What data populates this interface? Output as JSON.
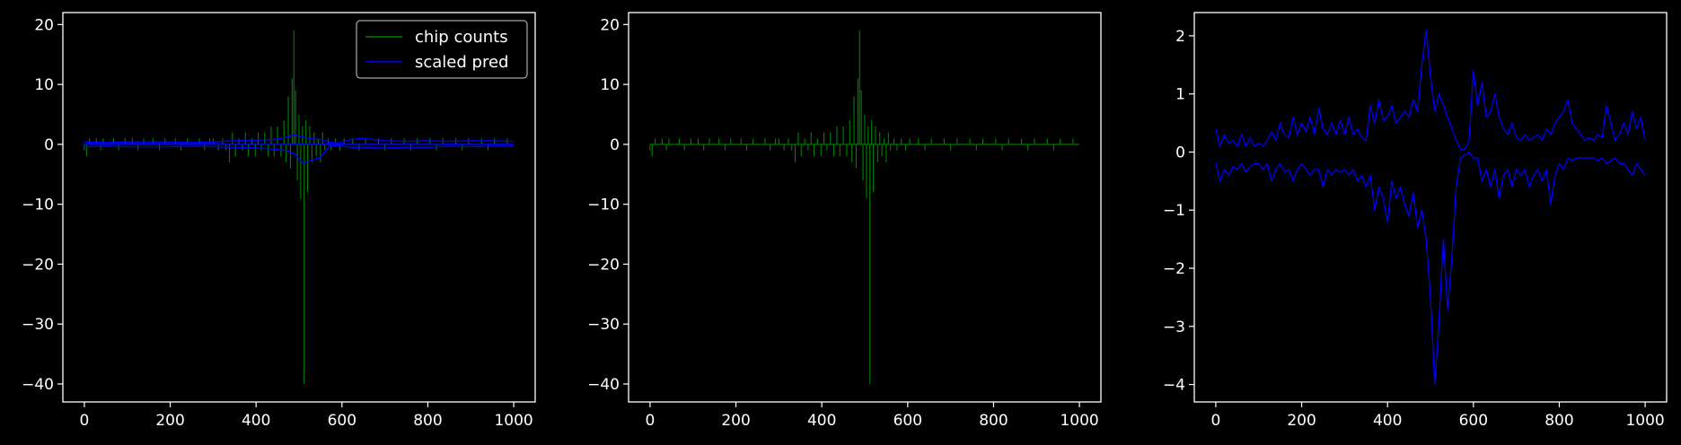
{
  "figure": {
    "background": "#000000",
    "axis_color": "#ffffff",
    "colors": {
      "counts": "#008000",
      "pred": "#0000ff"
    }
  },
  "chart_data": [
    {
      "type": "line",
      "title": "",
      "xlabel": "",
      "ylabel": "",
      "xlim": [
        -50,
        1050
      ],
      "ylim": [
        -43,
        22
      ],
      "xticks": [
        0,
        200,
        400,
        600,
        800,
        1000
      ],
      "xtick_labels": [
        "0",
        "200",
        "400",
        "600",
        "800",
        "1000"
      ],
      "yticks": [
        -40,
        -30,
        -20,
        -10,
        0,
        10,
        20
      ],
      "ytick_labels": [
        "−40",
        "−30",
        "−20",
        "−10",
        "0",
        "10",
        "20"
      ],
      "grid": false,
      "legend": {
        "position": "top-right",
        "entries": [
          "chip counts",
          "scaled pred"
        ]
      },
      "series": [
        {
          "name": "chip counts",
          "color": "#008000",
          "style": "spikes",
          "x": [
            0,
            5,
            12,
            20,
            28,
            38,
            44,
            55,
            68,
            80,
            95,
            100,
            112,
            125,
            138,
            150,
            160,
            175,
            188,
            200,
            212,
            225,
            240,
            255,
            268,
            280,
            292,
            300,
            312,
            322,
            330,
            338,
            345,
            352,
            360,
            368,
            375,
            382,
            390,
            398,
            405,
            412,
            420,
            428,
            435,
            442,
            450,
            458,
            465,
            470,
            475,
            480,
            484,
            488,
            492,
            496,
            500,
            504,
            508,
            512,
            516,
            520,
            525,
            530,
            535,
            540,
            545,
            550,
            555,
            560,
            568,
            575,
            585,
            595,
            605,
            615,
            625,
            640,
            655,
            670,
            685,
            700,
            715,
            730,
            745,
            760,
            775,
            790,
            805,
            820,
            835,
            850,
            865,
            880,
            895,
            910,
            925,
            940,
            955,
            970,
            985,
            1000
          ],
          "y": [
            -1,
            -2,
            1,
            0,
            1,
            -1,
            1,
            0,
            1,
            -1,
            1,
            0,
            1,
            -1,
            1,
            0,
            1,
            -1,
            1,
            0,
            1,
            -1,
            1,
            0,
            1,
            -1,
            1,
            1,
            -1,
            1,
            -1,
            -3,
            2,
            -2,
            1,
            -1,
            2,
            -2,
            1,
            -2,
            2,
            -1,
            2,
            -2,
            3,
            -2,
            3,
            -2,
            4,
            -3,
            8,
            -4,
            11,
            19,
            9,
            -6,
            5,
            -9,
            3,
            -40,
            4,
            -8,
            3,
            -3,
            2,
            -2,
            1,
            -3,
            2,
            -1,
            1,
            -1,
            1,
            -1,
            1,
            0,
            1,
            -1,
            1,
            0,
            1,
            -1,
            1,
            0,
            1,
            -1,
            1,
            0,
            1,
            -1,
            1,
            0,
            1,
            -1,
            1,
            0,
            1,
            -1,
            1,
            0,
            1,
            0
          ]
        },
        {
          "name": "scaled pred",
          "color": "#0000ff",
          "style": "band",
          "x": [
            0,
            50,
            100,
            150,
            200,
            250,
            300,
            350,
            400,
            440,
            470,
            490,
            510,
            530,
            550,
            570,
            590,
            620,
            650,
            700,
            750,
            800,
            850,
            900,
            950,
            1000
          ],
          "upper": [
            0.4,
            0.3,
            0.4,
            0.4,
            0.4,
            0.3,
            0.4,
            0.6,
            0.7,
            0.8,
            1.2,
            1.6,
            1.2,
            0.9,
            0.8,
            0.4,
            0.2,
            0.8,
            1.0,
            0.6,
            0.5,
            0.6,
            0.5,
            0.6,
            0.6,
            0.5
          ],
          "lower": [
            -0.4,
            -0.3,
            -0.4,
            -0.4,
            -0.4,
            -0.3,
            -0.4,
            -0.5,
            -0.6,
            -0.8,
            -1.0,
            -1.6,
            -3.2,
            -2.6,
            -2.2,
            -0.3,
            -0.2,
            -0.5,
            -0.5,
            -0.6,
            -0.5,
            -0.5,
            -0.3,
            -0.4,
            -0.3,
            -0.3
          ]
        }
      ]
    },
    {
      "type": "line",
      "title": "",
      "xlabel": "",
      "ylabel": "",
      "xlim": [
        -50,
        1050
      ],
      "ylim": [
        -43,
        22
      ],
      "xticks": [
        0,
        200,
        400,
        600,
        800,
        1000
      ],
      "xtick_labels": [
        "0",
        "200",
        "400",
        "600",
        "800",
        "1000"
      ],
      "yticks": [
        -40,
        -30,
        -20,
        -10,
        0,
        10,
        20
      ],
      "ytick_labels": [
        "−40",
        "−30",
        "−20",
        "−10",
        "0",
        "10",
        "20"
      ],
      "grid": false,
      "series": [
        {
          "color": "#008000",
          "style": "spikes",
          "x": [
            0,
            5,
            12,
            20,
            28,
            38,
            44,
            55,
            68,
            80,
            95,
            100,
            112,
            125,
            138,
            150,
            160,
            175,
            188,
            200,
            212,
            225,
            240,
            255,
            268,
            280,
            292,
            300,
            312,
            322,
            330,
            338,
            345,
            352,
            360,
            368,
            375,
            382,
            390,
            398,
            405,
            412,
            420,
            428,
            435,
            442,
            450,
            458,
            465,
            470,
            475,
            480,
            484,
            488,
            492,
            496,
            500,
            504,
            508,
            512,
            516,
            520,
            525,
            530,
            535,
            540,
            545,
            550,
            555,
            560,
            568,
            575,
            585,
            595,
            605,
            615,
            625,
            640,
            655,
            670,
            685,
            700,
            715,
            730,
            745,
            760,
            775,
            790,
            805,
            820,
            835,
            850,
            865,
            880,
            895,
            910,
            925,
            940,
            955,
            970,
            985,
            1000
          ],
          "y": [
            -1,
            -2,
            1,
            0,
            1,
            -1,
            1,
            0,
            1,
            -1,
            1,
            0,
            1,
            -1,
            1,
            0,
            1,
            -1,
            1,
            0,
            1,
            -1,
            1,
            0,
            1,
            -1,
            1,
            1,
            -1,
            1,
            -1,
            -3,
            2,
            -2,
            1,
            -1,
            2,
            -2,
            1,
            -2,
            2,
            -1,
            2,
            -2,
            3,
            -2,
            3,
            -2,
            4,
            -3,
            8,
            -4,
            11,
            19,
            9,
            -6,
            5,
            -9,
            3,
            -40,
            4,
            -8,
            3,
            -3,
            2,
            -2,
            1,
            -3,
            2,
            -1,
            1,
            -1,
            1,
            -1,
            1,
            0,
            1,
            -1,
            1,
            0,
            1,
            -1,
            1,
            0,
            1,
            -1,
            1,
            0,
            1,
            -1,
            1,
            0,
            1,
            -1,
            1,
            0,
            1,
            -1,
            1,
            0,
            1,
            0
          ]
        }
      ]
    },
    {
      "type": "line",
      "title": "",
      "xlabel": "",
      "ylabel": "",
      "xlim": [
        -50,
        1050
      ],
      "ylim": [
        -4.3,
        2.4
      ],
      "xticks": [
        0,
        200,
        400,
        600,
        800,
        1000
      ],
      "xtick_labels": [
        "0",
        "200",
        "400",
        "600",
        "800",
        "1000"
      ],
      "yticks": [
        -4,
        -3,
        -2,
        -1,
        0,
        1,
        2
      ],
      "ytick_labels": [
        "−4",
        "−3",
        "−2",
        "−1",
        "0",
        "1",
        "2"
      ],
      "grid": false,
      "series": [
        {
          "color": "#0000ff",
          "style": "line",
          "x": [
            0,
            10,
            20,
            30,
            40,
            50,
            60,
            70,
            80,
            90,
            100,
            110,
            120,
            130,
            140,
            150,
            160,
            170,
            180,
            190,
            200,
            210,
            220,
            230,
            240,
            250,
            260,
            270,
            280,
            290,
            300,
            310,
            320,
            330,
            340,
            350,
            360,
            370,
            380,
            390,
            400,
            410,
            420,
            430,
            440,
            450,
            460,
            470,
            480,
            490,
            500,
            510,
            520,
            530,
            540,
            550,
            560,
            570,
            580,
            590,
            600,
            610,
            620,
            630,
            640,
            650,
            660,
            670,
            680,
            690,
            700,
            710,
            720,
            730,
            740,
            750,
            760,
            770,
            780,
            790,
            800,
            810,
            820,
            830,
            840,
            850,
            860,
            870,
            880,
            890,
            900,
            910,
            920,
            930,
            940,
            950,
            960,
            970,
            980,
            990,
            1000
          ],
          "y": [
            0.4,
            0.1,
            0.3,
            0.15,
            0.2,
            0.1,
            0.3,
            0.1,
            0.25,
            0.1,
            0.15,
            0.1,
            0.2,
            0.35,
            0.2,
            0.5,
            0.3,
            0.25,
            0.6,
            0.3,
            0.5,
            0.35,
            0.6,
            0.3,
            0.75,
            0.4,
            0.3,
            0.5,
            0.3,
            0.55,
            0.3,
            0.6,
            0.3,
            0.4,
            0.25,
            0.2,
            0.8,
            0.5,
            0.9,
            0.55,
            0.6,
            0.8,
            0.5,
            0.6,
            0.7,
            0.6,
            0.9,
            0.7,
            1.5,
            2.1,
            1.3,
            0.7,
            1.0,
            0.8,
            0.6,
            0.4,
            0.2,
            0.05,
            0.05,
            0.2,
            1.4,
            0.8,
            1.2,
            0.6,
            0.7,
            1.0,
            0.6,
            0.4,
            0.3,
            0.5,
            0.25,
            0.2,
            0.3,
            0.2,
            0.25,
            0.3,
            0.2,
            0.4,
            0.3,
            0.5,
            0.6,
            0.7,
            0.9,
            0.5,
            0.4,
            0.3,
            0.2,
            0.25,
            0.2,
            0.3,
            0.25,
            0.8,
            0.5,
            0.2,
            0.3,
            0.5,
            0.3,
            0.7,
            0.4,
            0.6,
            0.2
          ]
        },
        {
          "color": "#0000ff",
          "style": "line",
          "x": [
            0,
            10,
            20,
            30,
            40,
            50,
            60,
            70,
            80,
            90,
            100,
            110,
            120,
            130,
            140,
            150,
            160,
            170,
            180,
            190,
            200,
            210,
            220,
            230,
            240,
            250,
            260,
            270,
            280,
            290,
            300,
            310,
            320,
            330,
            340,
            350,
            360,
            370,
            380,
            390,
            400,
            410,
            420,
            430,
            440,
            450,
            460,
            470,
            480,
            490,
            500,
            510,
            520,
            530,
            540,
            550,
            560,
            570,
            580,
            590,
            600,
            610,
            620,
            630,
            640,
            650,
            660,
            670,
            680,
            690,
            700,
            710,
            720,
            730,
            740,
            750,
            760,
            770,
            780,
            790,
            800,
            810,
            820,
            830,
            840,
            850,
            860,
            870,
            880,
            890,
            900,
            910,
            920,
            930,
            940,
            950,
            960,
            970,
            980,
            990,
            1000
          ],
          "y": [
            -0.2,
            -0.5,
            -0.3,
            -0.4,
            -0.25,
            -0.3,
            -0.2,
            -0.35,
            -0.25,
            -0.2,
            -0.2,
            -0.3,
            -0.2,
            -0.5,
            -0.3,
            -0.2,
            -0.35,
            -0.3,
            -0.5,
            -0.3,
            -0.2,
            -0.3,
            -0.4,
            -0.3,
            -0.3,
            -0.6,
            -0.3,
            -0.4,
            -0.3,
            -0.35,
            -0.3,
            -0.4,
            -0.3,
            -0.5,
            -0.4,
            -0.6,
            -0.4,
            -1.0,
            -0.6,
            -0.8,
            -1.2,
            -0.5,
            -0.8,
            -0.6,
            -0.9,
            -1.1,
            -0.7,
            -1.3,
            -1.0,
            -1.5,
            -2.5,
            -4.0,
            -2.9,
            -1.5,
            -2.7,
            -1.8,
            -0.6,
            -0.1,
            -0.05,
            0.0,
            -0.1,
            -0.1,
            -0.5,
            -0.3,
            -0.6,
            -0.3,
            -0.8,
            -0.4,
            -0.3,
            -0.6,
            -0.3,
            -0.4,
            -0.3,
            -0.6,
            -0.4,
            -0.3,
            -0.5,
            -0.3,
            -0.9,
            -0.4,
            -0.2,
            -0.3,
            -0.1,
            -0.15,
            -0.1,
            -0.1,
            -0.1,
            -0.1,
            -0.1,
            -0.15,
            -0.1,
            -0.2,
            -0.15,
            -0.1,
            -0.2,
            -0.2,
            -0.3,
            -0.4,
            -0.2,
            -0.3,
            -0.4
          ]
        }
      ]
    }
  ]
}
